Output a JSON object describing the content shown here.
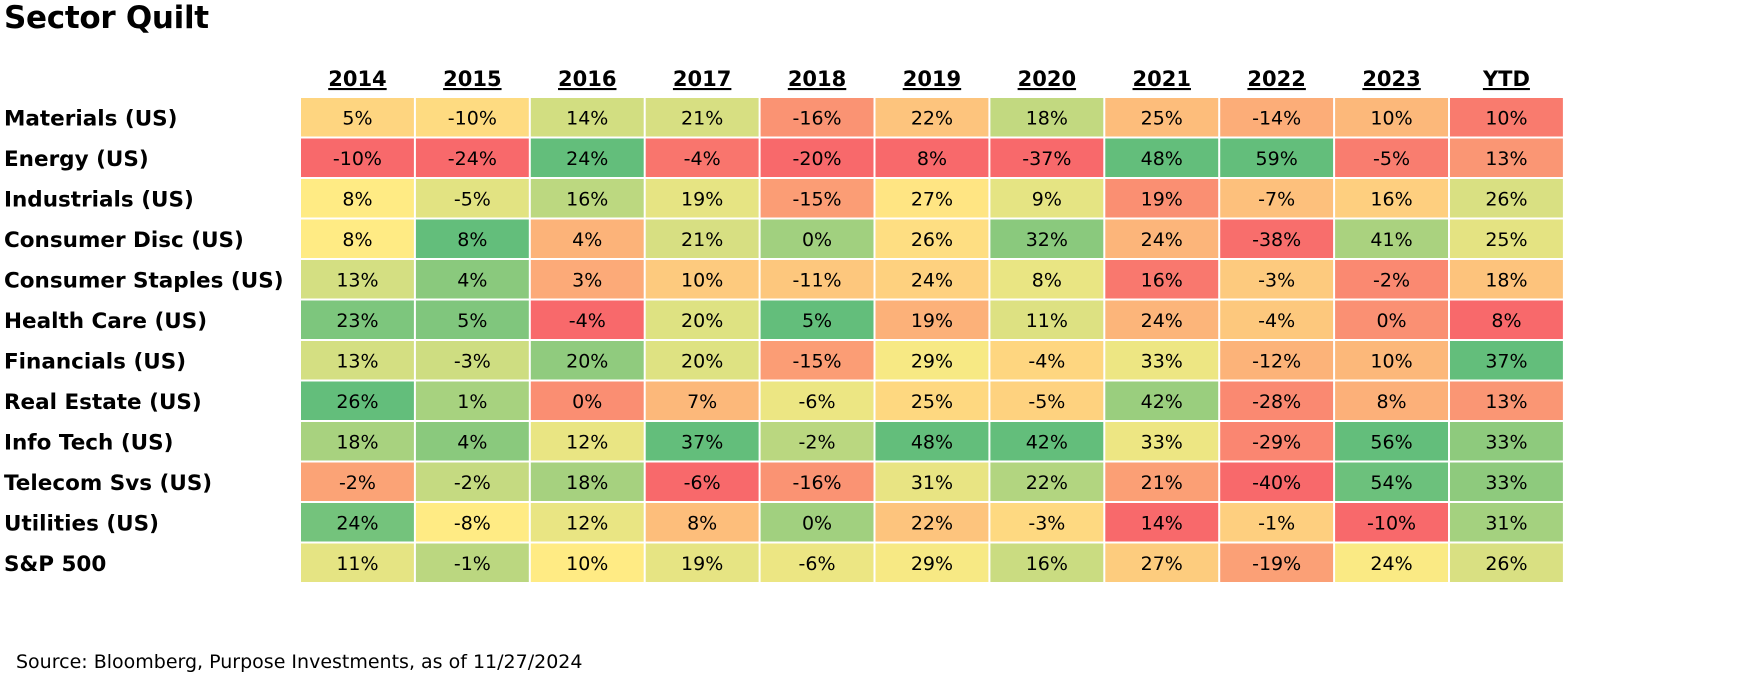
{
  "chart_data": {
    "type": "heatmap",
    "title": "Sector Quilt",
    "columns": [
      "2014",
      "2015",
      "2016",
      "2017",
      "2018",
      "2019",
      "2020",
      "2021",
      "2022",
      "2023",
      "YTD"
    ],
    "rows": [
      {
        "label": "Materials (US)",
        "values": [
          "5%",
          "-10%",
          "14%",
          "21%",
          "-16%",
          "22%",
          "18%",
          "25%",
          "-14%",
          "10%",
          "10%"
        ]
      },
      {
        "label": "Energy (US)",
        "values": [
          "-10%",
          "-24%",
          "24%",
          "-4%",
          "-20%",
          "8%",
          "-37%",
          "48%",
          "59%",
          "-5%",
          "13%"
        ]
      },
      {
        "label": "Industrials (US)",
        "values": [
          "8%",
          "-5%",
          "16%",
          "19%",
          "-15%",
          "27%",
          "9%",
          "19%",
          "-7%",
          "16%",
          "26%"
        ]
      },
      {
        "label": "Consumer Disc (US)",
        "values": [
          "8%",
          "8%",
          "4%",
          "21%",
          "0%",
          "26%",
          "32%",
          "24%",
          "-38%",
          "41%",
          "25%"
        ]
      },
      {
        "label": "Consumer Staples (US)",
        "values": [
          "13%",
          "4%",
          "3%",
          "10%",
          "-11%",
          "24%",
          "8%",
          "16%",
          "-3%",
          "-2%",
          "18%"
        ]
      },
      {
        "label": "Health Care (US)",
        "values": [
          "23%",
          "5%",
          "-4%",
          "20%",
          "5%",
          "19%",
          "11%",
          "24%",
          "-4%",
          "0%",
          "8%"
        ]
      },
      {
        "label": "Financials (US)",
        "values": [
          "13%",
          "-3%",
          "20%",
          "20%",
          "-15%",
          "29%",
          "-4%",
          "33%",
          "-12%",
          "10%",
          "37%"
        ]
      },
      {
        "label": "Real Estate (US)",
        "values": [
          "26%",
          "1%",
          "0%",
          "7%",
          "-6%",
          "25%",
          "-5%",
          "42%",
          "-28%",
          "8%",
          "13%"
        ]
      },
      {
        "label": "Info Tech (US)",
        "values": [
          "18%",
          "4%",
          "12%",
          "37%",
          "-2%",
          "48%",
          "42%",
          "33%",
          "-29%",
          "56%",
          "33%"
        ]
      },
      {
        "label": "Telecom Svs (US)",
        "values": [
          "-2%",
          "-2%",
          "18%",
          "-6%",
          "-16%",
          "31%",
          "22%",
          "21%",
          "-40%",
          "54%",
          "33%"
        ]
      },
      {
        "label": "Utilities (US)",
        "values": [
          "24%",
          "-8%",
          "12%",
          "8%",
          "0%",
          "22%",
          "-3%",
          "14%",
          "-1%",
          "-10%",
          "31%"
        ]
      },
      {
        "label": "S&P 500",
        "values": [
          "11%",
          "-1%",
          "10%",
          "19%",
          "-6%",
          "29%",
          "16%",
          "27%",
          "-19%",
          "24%",
          "26%"
        ]
      }
    ],
    "color_scale": {
      "low": "#f8696b",
      "mid": "#ffeb84",
      "high": "#63be7b",
      "scale": "per-column"
    },
    "source": "Source: Bloomberg, Purpose Investments, as of 11/27/2024"
  }
}
